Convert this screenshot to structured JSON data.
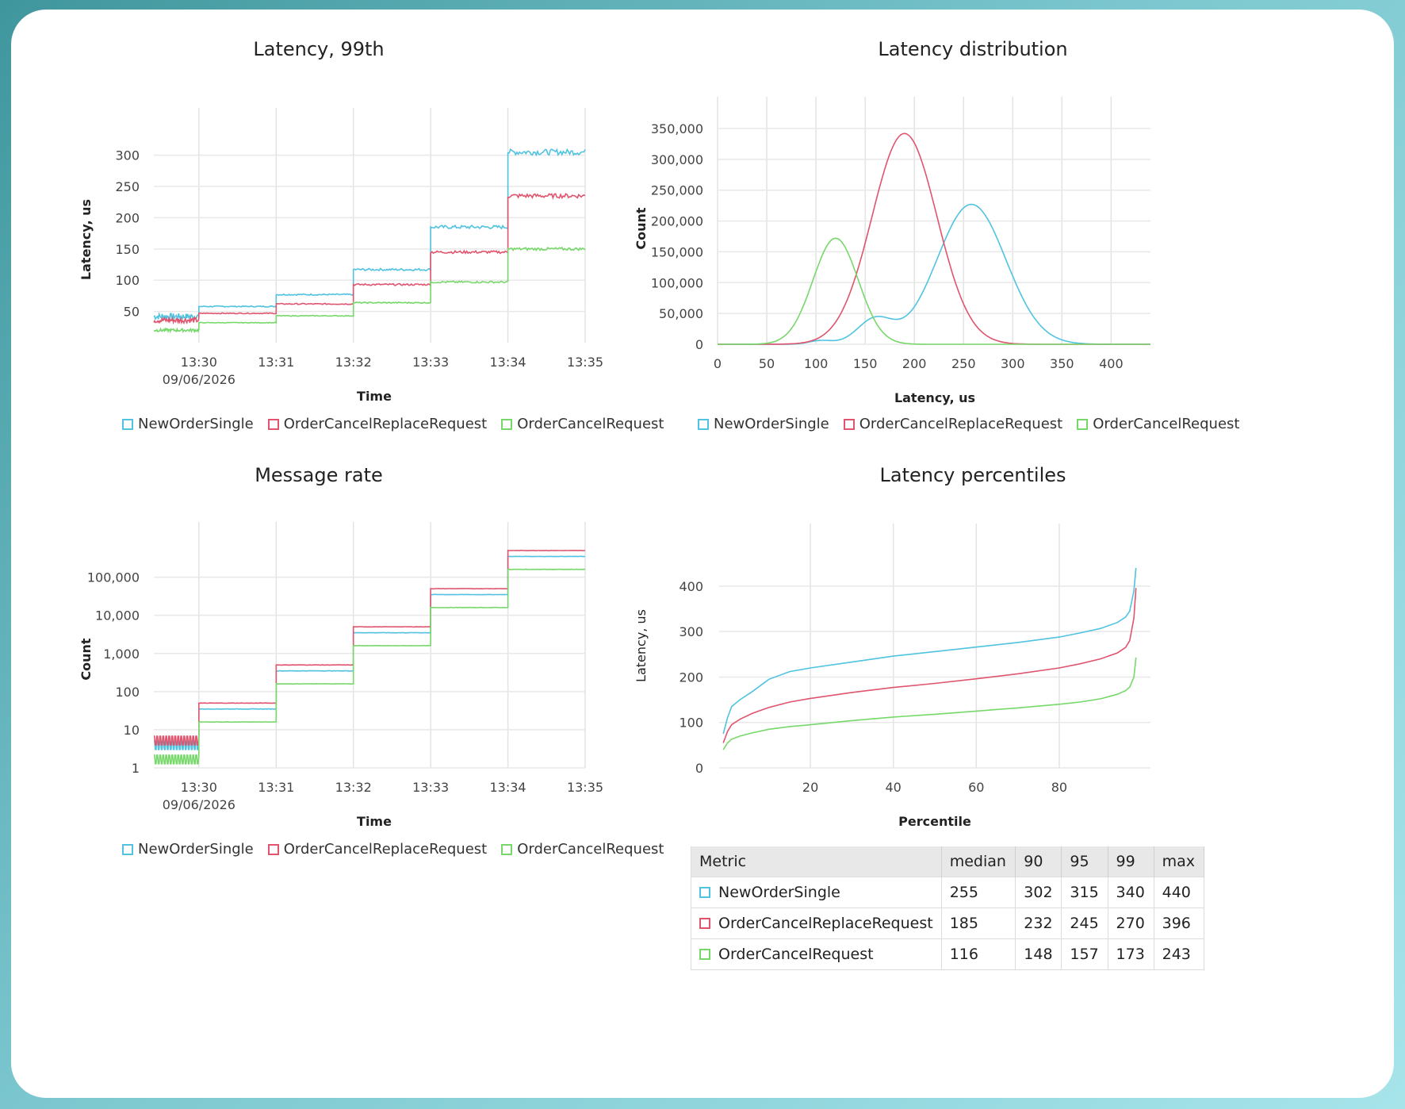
{
  "colors": {
    "NewOrderSingle": "#4fc3e0",
    "OrderCancelReplaceRequest": "#e0546e",
    "OrderCancelRequest": "#77d86a"
  },
  "series_names": [
    "NewOrderSingle",
    "OrderCancelReplaceRequest",
    "OrderCancelRequest"
  ],
  "chart_data": [
    {
      "id": "latency99",
      "type": "line",
      "title": "Latency, 99th",
      "xlabel": "Time",
      "ylabel": "Latency, us",
      "x_ticks": [
        "13:30",
        "13:31",
        "13:32",
        "13:33",
        "13:34",
        "13:35"
      ],
      "x_date": "09/06/2026",
      "y_ticks": [
        "50",
        "100",
        "150",
        "200",
        "250",
        "300"
      ],
      "xlim": [
        "13:29:25",
        "13:35:00"
      ],
      "ylim": [
        0,
        330
      ],
      "grid": true,
      "legend": "bottom",
      "series": [
        {
          "name": "NewOrderSingle",
          "steps": [
            [
              " 13:29:25",
              42
            ],
            [
              "13:30",
              58
            ],
            [
              "13:31",
              77
            ],
            [
              "13:32",
              117
            ],
            [
              "13:33",
              185
            ],
            [
              "13:34",
              305
            ]
          ]
        },
        {
          "name": "OrderCancelReplaceRequest",
          "steps": [
            [
              "13:29:25",
              36
            ],
            [
              "13:30",
              47
            ],
            [
              "13:31",
              62
            ],
            [
              "13:32",
              93
            ],
            [
              "13:33",
              145
            ],
            [
              "13:34",
              235
            ]
          ]
        },
        {
          "name": "OrderCancelRequest",
          "steps": [
            [
              "13:29:25",
              20
            ],
            [
              "13:30",
              32
            ],
            [
              "13:31",
              43
            ],
            [
              "13:32",
              64
            ],
            [
              "13:33",
              97
            ],
            [
              "13:34",
              150
            ]
          ]
        }
      ]
    },
    {
      "id": "latdist",
      "type": "line",
      "title": "Latency distribution",
      "xlabel": "Latency, us",
      "ylabel": "Count",
      "x_ticks": [
        "0",
        "50",
        "100",
        "150",
        "200",
        "250",
        "300",
        "350",
        "400"
      ],
      "y_ticks": [
        "0",
        "50,000",
        "100,000",
        "150,000",
        "200,000",
        "250,000",
        "300,000",
        "350,000"
      ],
      "xlim": [
        0,
        440
      ],
      "ylim": [
        0,
        350000
      ],
      "grid": true,
      "legend": "bottom",
      "series": [
        {
          "name": "NewOrderSingle",
          "components": [
            [
              258,
              35,
              227000
            ],
            [
              160,
              18,
              40000
            ],
            [
              105,
              12,
              6000
            ]
          ]
        },
        {
          "name": "OrderCancelReplaceRequest",
          "components": [
            [
              190,
              33,
              342000
            ]
          ]
        },
        {
          "name": "OrderCancelRequest",
          "components": [
            [
              120,
              23,
              172000
            ]
          ]
        }
      ]
    },
    {
      "id": "msgrate",
      "type": "line",
      "title": "Message rate",
      "xlabel": "Time",
      "ylabel": "Count",
      "y_scale": "log",
      "x_ticks": [
        "13:30",
        "13:31",
        "13:32",
        "13:33",
        "13:34",
        "13:35"
      ],
      "x_date": "09/06/2026",
      "y_ticks": [
        "1",
        "10",
        "100",
        "1,000",
        "10,000",
        "100,000"
      ],
      "xlim": [
        "13:29:25",
        "13:35:00"
      ],
      "ylim": [
        1,
        500000
      ],
      "grid": true,
      "legend": "bottom",
      "series": [
        {
          "name": "NewOrderSingle",
          "steps": [
            [
              "13:29:25",
              3.8
            ],
            [
              "13:30",
              35
            ],
            [
              "13:31",
              350
            ],
            [
              "13:32",
              3500
            ],
            [
              "13:33",
              35000
            ],
            [
              "13:34",
              350000
            ]
          ]
        },
        {
          "name": "OrderCancelReplaceRequest",
          "steps": [
            [
              "13:29:25",
              5
            ],
            [
              "13:30",
              50
            ],
            [
              "13:31",
              500
            ],
            [
              "13:32",
              5000
            ],
            [
              "13:33",
              50000
            ],
            [
              "13:34",
              500000
            ]
          ]
        },
        {
          "name": "OrderCancelRequest",
          "steps": [
            [
              "13:29:25",
              1.6
            ],
            [
              "13:30",
              16
            ],
            [
              "13:31",
              160
            ],
            [
              "13:32",
              1600
            ],
            [
              "13:33",
              16000
            ],
            [
              "13:34",
              160000
            ]
          ]
        }
      ]
    },
    {
      "id": "percentiles",
      "type": "line",
      "title": "Latency percentiles",
      "xlabel": "Percentile",
      "ylabel": "Latency, us",
      "x_ticks": [
        "20",
        "40",
        "60",
        "80"
      ],
      "y_ticks": [
        "0",
        "100",
        "200",
        "300",
        "400"
      ],
      "xlim": [
        -2,
        102
      ],
      "ylim": [
        0,
        440
      ],
      "grid": true,
      "series": [
        {
          "name": "NewOrderSingle",
          "points": [
            [
              -1,
              75
            ],
            [
              0,
              110
            ],
            [
              1,
              135
            ],
            [
              3,
              150
            ],
            [
              6,
              168
            ],
            [
              10,
              195
            ],
            [
              15,
              212
            ],
            [
              20,
              220
            ],
            [
              30,
              233
            ],
            [
              40,
              246
            ],
            [
              50,
              256
            ],
            [
              60,
              266
            ],
            [
              70,
              276
            ],
            [
              80,
              288
            ],
            [
              85,
              297
            ],
            [
              90,
              307
            ],
            [
              94,
              320
            ],
            [
              96,
              332
            ],
            [
              97,
              345
            ],
            [
              98,
              390
            ],
            [
              98.5,
              440
            ]
          ]
        },
        {
          "name": "OrderCancelReplaceRequest",
          "points": [
            [
              -1,
              55
            ],
            [
              0,
              80
            ],
            [
              1,
              95
            ],
            [
              3,
              107
            ],
            [
              6,
              120
            ],
            [
              10,
              133
            ],
            [
              15,
              145
            ],
            [
              20,
              153
            ],
            [
              30,
              166
            ],
            [
              40,
              177
            ],
            [
              50,
              186
            ],
            [
              60,
              196
            ],
            [
              70,
              207
            ],
            [
              80,
              220
            ],
            [
              85,
              229
            ],
            [
              90,
              240
            ],
            [
              94,
              253
            ],
            [
              96,
              265
            ],
            [
              97,
              280
            ],
            [
              98,
              330
            ],
            [
              98.5,
              396
            ]
          ]
        },
        {
          "name": "OrderCancelRequest",
          "points": [
            [
              -1,
              40
            ],
            [
              0,
              55
            ],
            [
              1,
              63
            ],
            [
              3,
              70
            ],
            [
              6,
              77
            ],
            [
              10,
              85
            ],
            [
              15,
              91
            ],
            [
              20,
              95
            ],
            [
              30,
              104
            ],
            [
              40,
              112
            ],
            [
              50,
              118
            ],
            [
              60,
              125
            ],
            [
              70,
              132
            ],
            [
              80,
              140
            ],
            [
              85,
              145
            ],
            [
              90,
              152
            ],
            [
              94,
              162
            ],
            [
              96,
              170
            ],
            [
              97,
              178
            ],
            [
              98,
              200
            ],
            [
              98.5,
              243
            ]
          ]
        }
      ]
    }
  ],
  "table": {
    "headers": [
      "Metric",
      "median",
      "90",
      "95",
      "99",
      "max"
    ],
    "rows": [
      [
        "NewOrderSingle",
        "255",
        "302",
        "315",
        "340",
        "440"
      ],
      [
        "OrderCancelReplaceRequest",
        "185",
        "232",
        "245",
        "270",
        "396"
      ],
      [
        "OrderCancelRequest",
        "116",
        "148",
        "157",
        "173",
        "243"
      ]
    ]
  }
}
